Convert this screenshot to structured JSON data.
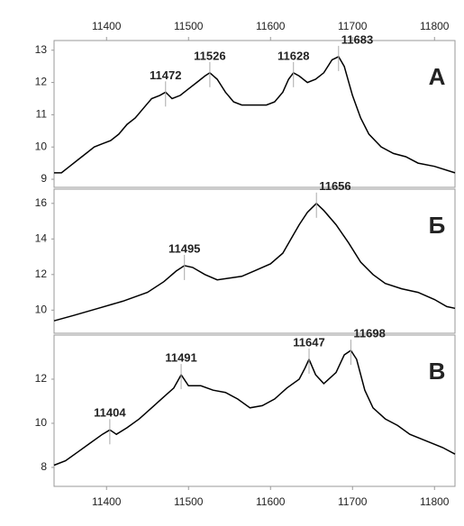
{
  "chart_data": [
    {
      "type": "line",
      "label": "А",
      "color": "#000000",
      "xaxis": "top",
      "xlim": [
        11336,
        11825
      ],
      "ylim": [
        8.75,
        13.3
      ],
      "xticks": [
        11400,
        11500,
        11600,
        11700,
        11800
      ],
      "yticks": [
        9,
        10,
        11,
        12,
        13
      ],
      "x": [
        11336,
        11345,
        11355,
        11365,
        11375,
        11385,
        11395,
        11405,
        11415,
        11425,
        11435,
        11445,
        11455,
        11465,
        11472,
        11480,
        11490,
        11500,
        11510,
        11520,
        11526,
        11535,
        11545,
        11555,
        11565,
        11580,
        11595,
        11605,
        11615,
        11622,
        11628,
        11635,
        11645,
        11655,
        11665,
        11675,
        11683,
        11690,
        11700,
        11710,
        11720,
        11735,
        11750,
        11765,
        11780,
        11800,
        11825
      ],
      "values": [
        9.2,
        9.2,
        9.4,
        9.6,
        9.8,
        10.0,
        10.1,
        10.2,
        10.4,
        10.7,
        10.9,
        11.2,
        11.5,
        11.6,
        11.7,
        11.5,
        11.6,
        11.8,
        12.0,
        12.2,
        12.3,
        12.1,
        11.7,
        11.4,
        11.3,
        11.3,
        11.3,
        11.4,
        11.7,
        12.1,
        12.3,
        12.2,
        12.0,
        12.1,
        12.3,
        12.7,
        12.8,
        12.5,
        11.6,
        10.9,
        10.4,
        10.0,
        9.8,
        9.7,
        9.5,
        9.4,
        9.2
      ],
      "annotations": [
        {
          "x": 11472,
          "y": 11.7
        },
        {
          "x": 11526,
          "y": 12.3
        },
        {
          "x": 11628,
          "y": 12.3
        },
        {
          "x": 11683,
          "y": 12.8
        }
      ]
    },
    {
      "type": "line",
      "label": "Б",
      "color": "#000000",
      "xlim": [
        11336,
        11825
      ],
      "ylim": [
        8.7,
        16.8
      ],
      "yticks": [
        10,
        12,
        14,
        16
      ],
      "x": [
        11336,
        11360,
        11390,
        11420,
        11450,
        11470,
        11485,
        11495,
        11505,
        11520,
        11535,
        11550,
        11565,
        11580,
        11600,
        11615,
        11625,
        11635,
        11645,
        11656,
        11665,
        11680,
        11695,
        11710,
        11725,
        11740,
        11760,
        11780,
        11800,
        11815,
        11825
      ],
      "values": [
        9.4,
        9.7,
        10.1,
        10.5,
        11.0,
        11.6,
        12.2,
        12.5,
        12.4,
        12.0,
        11.7,
        11.8,
        11.9,
        12.2,
        12.6,
        13.2,
        14.0,
        14.8,
        15.5,
        16.0,
        15.6,
        14.8,
        13.8,
        12.7,
        12.0,
        11.5,
        11.2,
        11.0,
        10.6,
        10.2,
        10.1
      ],
      "annotations": [
        {
          "x": 11495,
          "y": 12.5
        },
        {
          "x": 11656,
          "y": 16.0
        }
      ]
    },
    {
      "type": "line",
      "label": "В",
      "color": "#000000",
      "xaxis": "bottom",
      "xlim": [
        11336,
        11825
      ],
      "ylim": [
        7.14,
        14.0
      ],
      "xticks": [
        11400,
        11500,
        11600,
        11700,
        11800
      ],
      "yticks": [
        8,
        10,
        12
      ],
      "x": [
        11336,
        11350,
        11365,
        11380,
        11395,
        11404,
        11412,
        11425,
        11440,
        11455,
        11470,
        11482,
        11491,
        11500,
        11515,
        11530,
        11545,
        11560,
        11575,
        11590,
        11605,
        11620,
        11635,
        11642,
        11647,
        11655,
        11665,
        11680,
        11690,
        11698,
        11705,
        11715,
        11725,
        11740,
        11755,
        11770,
        11790,
        11810,
        11825
      ],
      "values": [
        8.1,
        8.3,
        8.7,
        9.1,
        9.5,
        9.7,
        9.5,
        9.8,
        10.2,
        10.7,
        11.2,
        11.6,
        12.2,
        11.7,
        11.7,
        11.5,
        11.4,
        11.1,
        10.7,
        10.8,
        11.1,
        11.6,
        12.0,
        12.5,
        12.9,
        12.2,
        11.8,
        12.3,
        13.1,
        13.3,
        12.9,
        11.5,
        10.7,
        10.2,
        9.9,
        9.5,
        9.2,
        8.9,
        8.6
      ],
      "annotations": [
        {
          "x": 11404,
          "y": 9.7
        },
        {
          "x": 11491,
          "y": 12.2
        },
        {
          "x": 11647,
          "y": 12.9
        },
        {
          "x": 11698,
          "y": 13.3
        }
      ]
    }
  ]
}
